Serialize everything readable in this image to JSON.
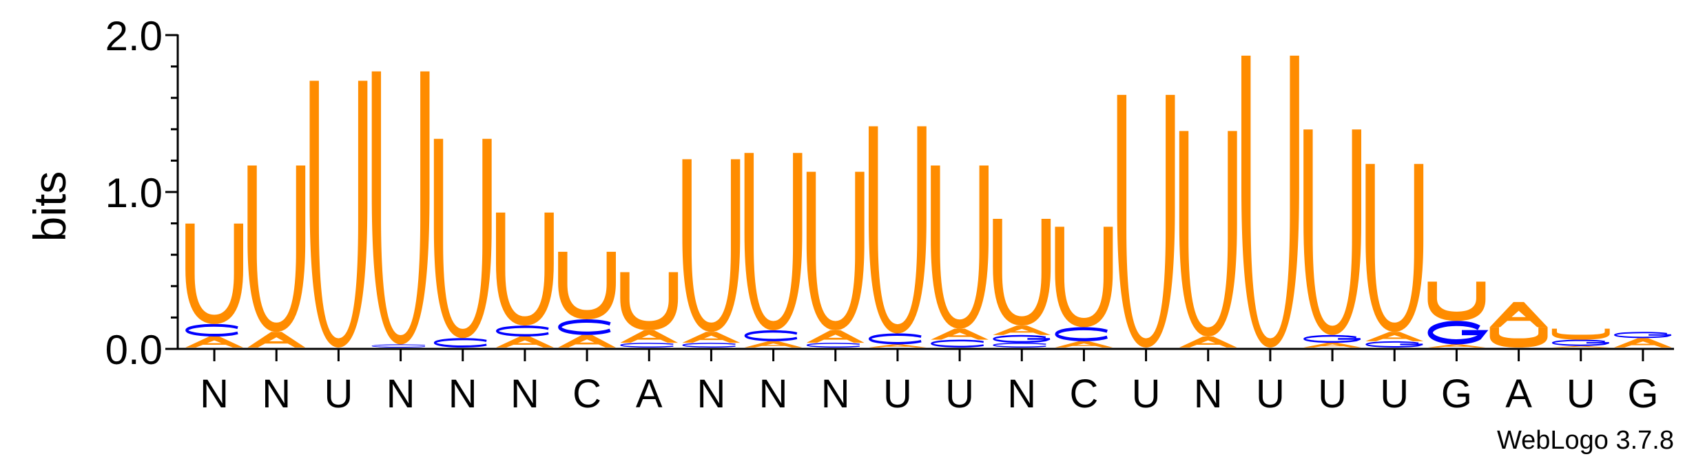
{
  "chart_data": {
    "type": "sequence-logo",
    "ylabel": "bits",
    "ylim": [
      0,
      2.0
    ],
    "yticks": [
      {
        "value": 0,
        "label": "0.0"
      },
      {
        "value": 1,
        "label": "1.0"
      },
      {
        "value": 2,
        "label": "2.0"
      }
    ],
    "consensus": [
      "N",
      "N",
      "U",
      "N",
      "N",
      "N",
      "C",
      "A",
      "N",
      "N",
      "N",
      "U",
      "U",
      "N",
      "C",
      "U",
      "N",
      "U",
      "U",
      "U",
      "G",
      "A",
      "U",
      "G"
    ],
    "colors": {
      "U": "#ff8c00",
      "A": "#ff8c00",
      "C": "#0000ff",
      "G": "#0000ff"
    },
    "positions": [
      {
        "stack": [
          [
            "A",
            0.07
          ],
          [
            "C",
            0.08
          ],
          [
            "U",
            0.64
          ]
        ]
      },
      {
        "stack": [
          [
            "A",
            0.1
          ],
          [
            "U",
            1.06
          ]
        ]
      },
      {
        "stack": [
          [
            "U",
            1.7
          ]
        ]
      },
      {
        "stack": [
          [
            "C",
            0.02
          ],
          [
            "U",
            1.74
          ]
        ]
      },
      {
        "stack": [
          [
            "C",
            0.06
          ],
          [
            "U",
            1.27
          ]
        ]
      },
      {
        "stack": [
          [
            "A",
            0.07
          ],
          [
            "C",
            0.07
          ],
          [
            "U",
            0.72
          ]
        ]
      },
      {
        "stack": [
          [
            "A",
            0.08
          ],
          [
            "C",
            0.1
          ],
          [
            "U",
            0.43
          ]
        ]
      },
      {
        "stack": [
          [
            "C",
            0.03
          ],
          [
            "A",
            0.08
          ],
          [
            "U",
            0.37
          ]
        ]
      },
      {
        "stack": [
          [
            "C",
            0.03
          ],
          [
            "A",
            0.07
          ],
          [
            "U",
            1.1
          ]
        ]
      },
      {
        "stack": [
          [
            "A",
            0.04
          ],
          [
            "C",
            0.07
          ],
          [
            "U",
            1.13
          ]
        ]
      },
      {
        "stack": [
          [
            "C",
            0.03
          ],
          [
            "A",
            0.08
          ],
          [
            "U",
            1.01
          ]
        ]
      },
      {
        "stack": [
          [
            "A",
            0.02
          ],
          [
            "C",
            0.07
          ],
          [
            "U",
            1.32
          ]
        ]
      },
      {
        "stack": [
          [
            "C",
            0.05
          ],
          [
            "A",
            0.07
          ],
          [
            "U",
            1.04
          ]
        ]
      },
      {
        "stack": [
          [
            "C",
            0.03
          ],
          [
            "G",
            0.05
          ],
          [
            "A",
            0.06
          ],
          [
            "U",
            0.68
          ]
        ]
      },
      {
        "stack": [
          [
            "A",
            0.04
          ],
          [
            "C",
            0.09
          ],
          [
            "U",
            0.64
          ]
        ]
      },
      {
        "stack": [
          [
            "U",
            1.61
          ]
        ]
      },
      {
        "stack": [
          [
            "A",
            0.07
          ],
          [
            "U",
            1.31
          ]
        ]
      },
      {
        "stack": [
          [
            "U",
            1.86
          ]
        ]
      },
      {
        "stack": [
          [
            "A",
            0.03
          ],
          [
            "G",
            0.05
          ],
          [
            "U",
            1.31
          ]
        ]
      },
      {
        "stack": [
          [
            "G",
            0.04
          ],
          [
            "A",
            0.06
          ],
          [
            "U",
            1.07
          ]
        ]
      },
      {
        "stack": [
          [
            "A",
            0.02
          ],
          [
            "G",
            0.15
          ],
          [
            "U",
            0.25
          ]
        ]
      },
      {
        "stack": [
          [
            "U",
            0.13
          ],
          [
            "A",
            0.16
          ]
        ]
      },
      {
        "stack": [
          [
            "A",
            0.01
          ],
          [
            "G",
            0.04
          ],
          [
            "U",
            0.07
          ]
        ]
      },
      {
        "stack": [
          [
            "A",
            0.06
          ],
          [
            "G",
            0.04
          ]
        ]
      }
    ]
  },
  "footer": {
    "credit": "WebLogo 3.7.8"
  }
}
